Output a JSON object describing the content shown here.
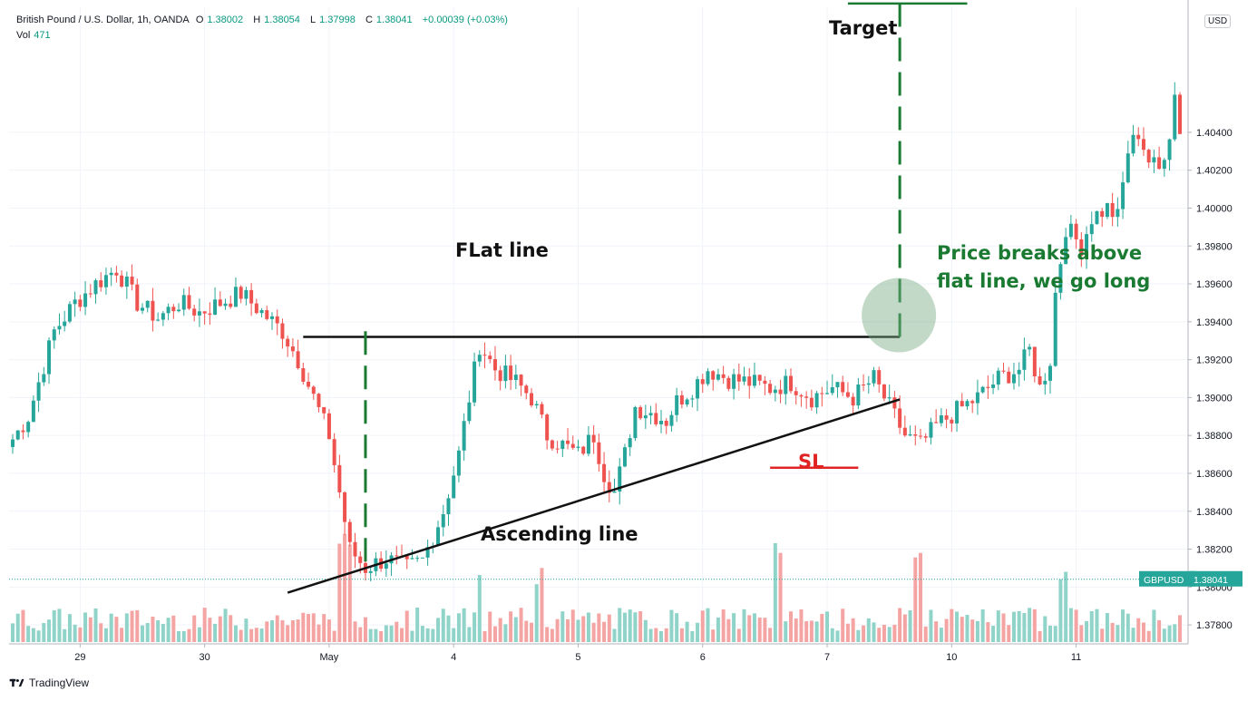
{
  "header": {
    "symbol": "British Pound / U.S. Dollar, 1h, OANDA",
    "open_label": "O",
    "open": "1.38002",
    "high_label": "H",
    "high": "1.38054",
    "low_label": "L",
    "low": "1.37998",
    "close_label": "C",
    "close": "1.38041",
    "change": "+0.00039 (+0.03%)",
    "vol_label": "Vol",
    "vol_value": "471"
  },
  "currency_badge": "USD",
  "price_badge": {
    "symbol": "GBPUSD",
    "price": "1.38041"
  },
  "branding": "TradingView",
  "annotations": {
    "flat_line": "FLat line",
    "ascending_line": "Ascending line",
    "target": "Target",
    "sl": "SL",
    "breakout_note_1": "Price breaks above",
    "breakout_note_2": "flat line, we go long"
  },
  "colors": {
    "up": "#26a69a",
    "down": "#ef5350",
    "up_vol": "#8fd3c9",
    "down_vol": "#f4a4a3",
    "annotation_green": "#1a7a32",
    "sl_red": "#e02424"
  },
  "chart_data": {
    "type": "candlestick",
    "symbol": "GBPUSD",
    "timeframe": "1h",
    "x_ticks": [
      "29",
      "30",
      "May",
      "4",
      "5",
      "6",
      "7",
      "10",
      "11"
    ],
    "y_ticks": [
      "1.37800",
      "1.38000",
      "1.38200",
      "1.38400",
      "1.38600",
      "1.38800",
      "1.39000",
      "1.39200",
      "1.39400",
      "1.39600",
      "1.39800",
      "1.40000",
      "1.40200",
      "1.40400"
    ],
    "ylim": [
      1.377,
      1.4106
    ],
    "last_price": 1.38041,
    "levels": {
      "flat_line": 1.3932,
      "stop_loss": 1.3863,
      "target": 1.4108
    },
    "ascending_line": {
      "from_price": 1.3797,
      "to_price": 1.3899
    },
    "anchors": [
      [
        0,
        1.3878
      ],
      [
        3,
        1.389
      ],
      [
        8,
        1.3935
      ],
      [
        12,
        1.395
      ],
      [
        16,
        1.396
      ],
      [
        20,
        1.3968
      ],
      [
        24,
        1.395
      ],
      [
        28,
        1.3942
      ],
      [
        32,
        1.395
      ],
      [
        36,
        1.3945
      ],
      [
        40,
        1.395
      ],
      [
        44,
        1.3955
      ],
      [
        48,
        1.3945
      ],
      [
        52,
        1.3935
      ],
      [
        55,
        1.392
      ],
      [
        58,
        1.39
      ],
      [
        61,
        1.388
      ],
      [
        63,
        1.385
      ],
      [
        65,
        1.382
      ],
      [
        68,
        1.381
      ],
      [
        72,
        1.3815
      ],
      [
        76,
        1.381
      ],
      [
        79,
        1.3814
      ],
      [
        83,
        1.384
      ],
      [
        86,
        1.387
      ],
      [
        88,
        1.39
      ],
      [
        90,
        1.3928
      ],
      [
        93,
        1.3915
      ],
      [
        97,
        1.3908
      ],
      [
        100,
        1.39
      ],
      [
        103,
        1.388
      ],
      [
        106,
        1.3875
      ],
      [
        109,
        1.387
      ],
      [
        112,
        1.388
      ],
      [
        114,
        1.386
      ],
      [
        116,
        1.385
      ],
      [
        118,
        1.387
      ],
      [
        120,
        1.3895
      ],
      [
        123,
        1.3892
      ],
      [
        126,
        1.3888
      ],
      [
        128,
        1.3898
      ],
      [
        131,
        1.3905
      ],
      [
        134,
        1.3915
      ],
      [
        138,
        1.391
      ],
      [
        142,
        1.3908
      ],
      [
        146,
        1.3905
      ],
      [
        150,
        1.3908
      ],
      [
        154,
        1.39
      ],
      [
        158,
        1.3905
      ],
      [
        162,
        1.39
      ],
      [
        166,
        1.391
      ],
      [
        170,
        1.389
      ],
      [
        172,
        1.388
      ],
      [
        175,
        1.3875
      ],
      [
        178,
        1.3885
      ],
      [
        182,
        1.3893
      ],
      [
        186,
        1.39
      ],
      [
        190,
        1.391
      ],
      [
        194,
        1.3915
      ],
      [
        196,
        1.3925
      ],
      [
        198,
        1.3905
      ],
      [
        200,
        1.392
      ],
      [
        201,
        1.3955
      ],
      [
        203,
        1.399
      ],
      [
        206,
        1.398
      ],
      [
        208,
        1.3995
      ],
      [
        211,
        1.4
      ],
      [
        213,
        1.3995
      ],
      [
        215,
        1.403
      ],
      [
        217,
        1.404
      ],
      [
        219,
        1.4025
      ],
      [
        221,
        1.402
      ],
      [
        223,
        1.404
      ],
      [
        224,
        1.406
      ]
    ]
  }
}
